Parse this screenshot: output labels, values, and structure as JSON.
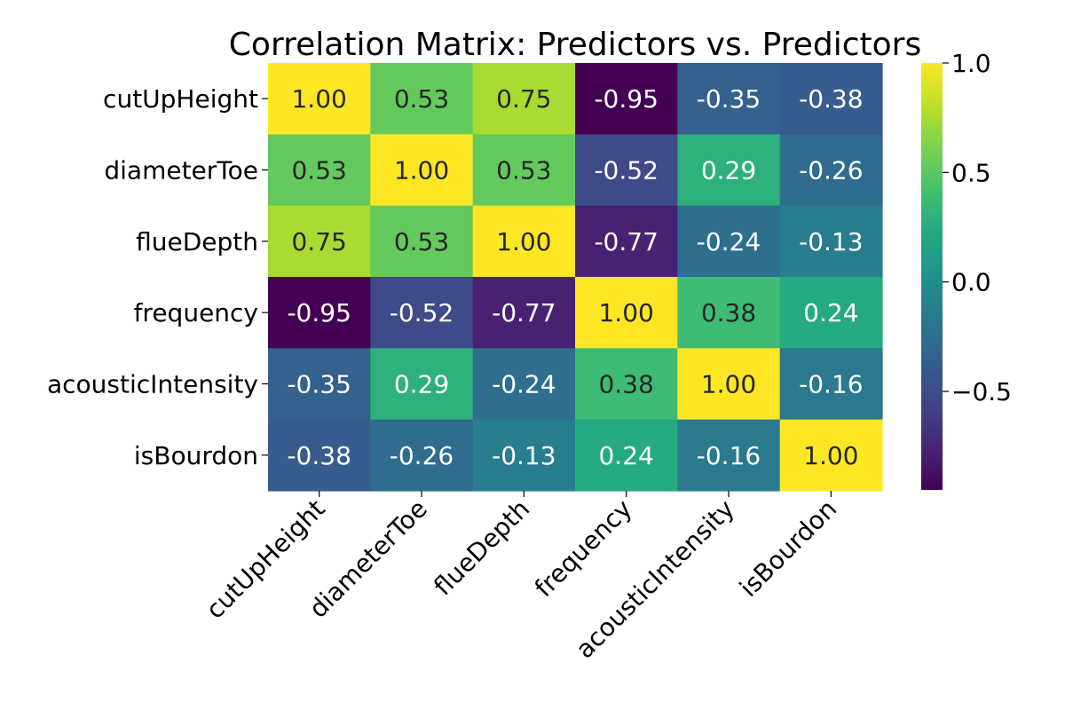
{
  "chart_data": {
    "type": "heatmap",
    "title": "Correlation Matrix: Predictors vs. Predictors",
    "rows": [
      "cutUpHeight",
      "diameterToe",
      "flueDepth",
      "frequency",
      "acousticIntensity",
      "isBourdon"
    ],
    "cols": [
      "cutUpHeight",
      "diameterToe",
      "flueDepth",
      "frequency",
      "acousticIntensity",
      "isBourdon"
    ],
    "values": [
      [
        1.0,
        0.53,
        0.75,
        -0.95,
        -0.35,
        -0.38
      ],
      [
        0.53,
        1.0,
        0.53,
        -0.52,
        0.29,
        -0.26
      ],
      [
        0.75,
        0.53,
        1.0,
        -0.77,
        -0.24,
        -0.13
      ],
      [
        -0.95,
        -0.52,
        -0.77,
        1.0,
        0.38,
        0.24
      ],
      [
        -0.35,
        0.29,
        -0.24,
        0.38,
        1.0,
        -0.16
      ],
      [
        -0.38,
        -0.26,
        -0.13,
        0.24,
        -0.16,
        1.0
      ]
    ],
    "value_format": "0.00",
    "colormap": "viridis",
    "vmin": -0.95,
    "vmax": 1.0,
    "colorbar": {
      "ticks": [
        1.0,
        0.5,
        0.0,
        -0.5
      ],
      "tick_labels": [
        "1.0",
        "0.5",
        "0.0",
        "−0.5"
      ]
    }
  }
}
